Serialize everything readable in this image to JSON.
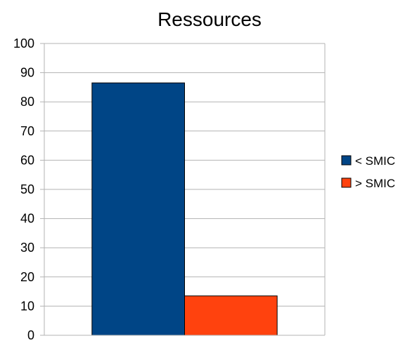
{
  "chart_data": {
    "type": "bar",
    "title": "Ressources",
    "xlabel": "",
    "ylabel": "",
    "categories": [
      ""
    ],
    "series": [
      {
        "name": "< SMIC",
        "values": [
          86.5
        ],
        "color": "#004586"
      },
      {
        "name": "> SMIC",
        "values": [
          13.5
        ],
        "color": "#ff420e"
      }
    ],
    "ylim": [
      0,
      100
    ],
    "yticks": [
      0,
      10,
      20,
      30,
      40,
      50,
      60,
      70,
      80,
      90,
      100
    ],
    "grid": true,
    "legend_position": "right"
  }
}
